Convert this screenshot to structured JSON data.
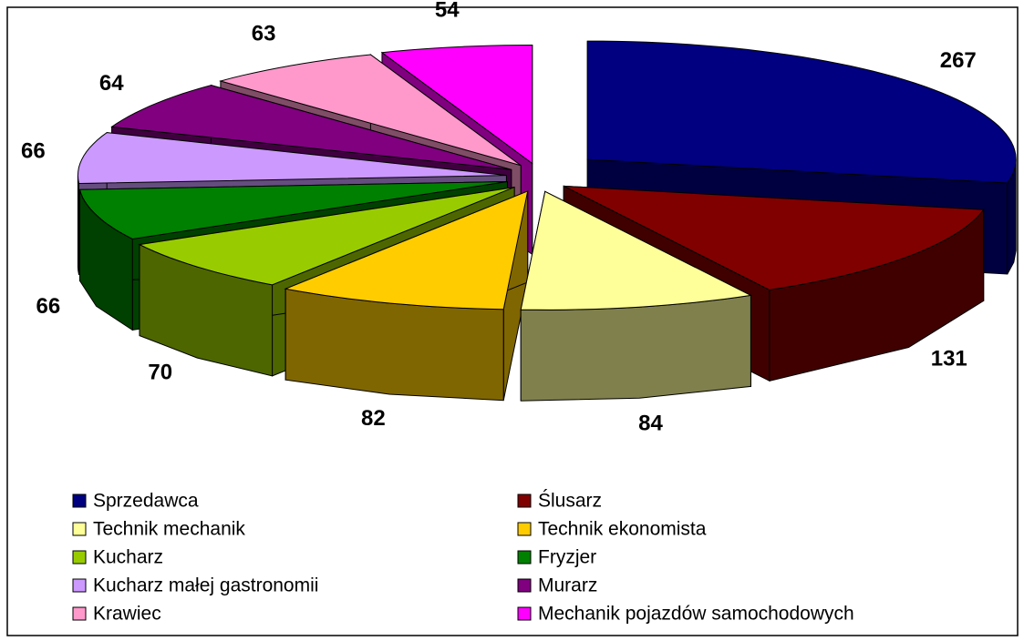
{
  "chart_data": {
    "type": "pie3d",
    "categories": [
      "Sprzedawca",
      "Ślusarz",
      "Technik mechanik",
      "Technik ekonomista",
      "Kucharz",
      "Fryzjer",
      "Kucharz małej gastronomii",
      "Murarz",
      "Krawiec",
      "Mechanik pojazdów samochodowych"
    ],
    "values": [
      267,
      131,
      84,
      82,
      70,
      66,
      66,
      64,
      63,
      54
    ],
    "colors": [
      "#000080",
      "#800000",
      "#FFFF99",
      "#FFCC00",
      "#99CC00",
      "#008000",
      "#CC99FF",
      "#800080",
      "#FF99CC",
      "#FF00FF"
    ],
    "legend": "bottom"
  }
}
